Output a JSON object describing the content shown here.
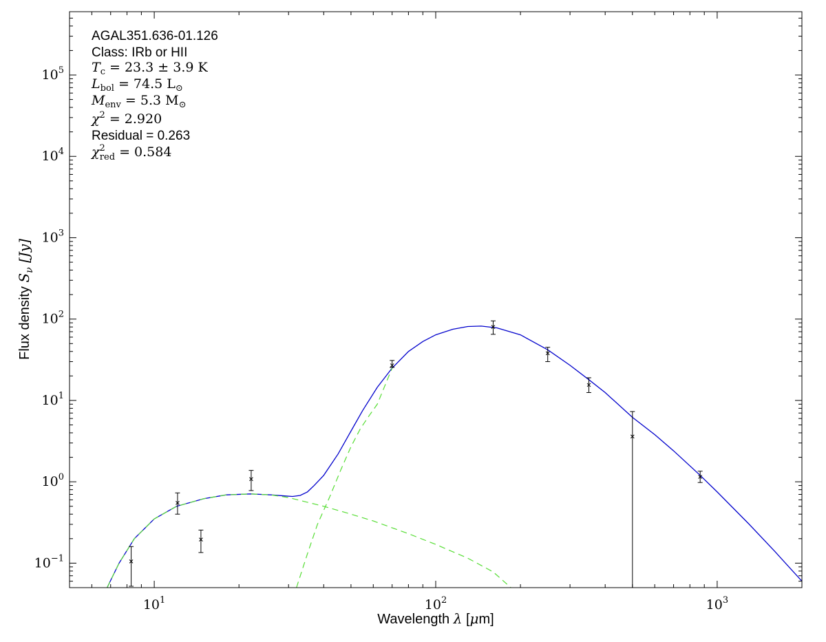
{
  "chart_data": {
    "type": "scatter",
    "xscale": "log",
    "yscale": "log",
    "xlim": [
      5,
      2000
    ],
    "ylim": [
      0.05,
      600000
    ],
    "xlabel": "Wavelength λ [μm]",
    "ylabel": "Flux density S_ν [Jy]",
    "xlabel_text": "Wavelength ",
    "xlabel_sym": "λ",
    "xlabel_unit_open": " [",
    "xlabel_unit_mu": "μ",
    "xlabel_unit_rest": "m]",
    "ylabel_text": "Flux density ",
    "ylabel_sym": "S",
    "ylabel_sub": "ν",
    "ylabel_unit": " [Jy]",
    "x_ticks": [
      {
        "value": 10,
        "base": "10",
        "exp": "1"
      },
      {
        "value": 100,
        "base": "10",
        "exp": "2"
      },
      {
        "value": 1000,
        "base": "10",
        "exp": "3"
      }
    ],
    "y_ticks": [
      {
        "value": 0.1,
        "base": "10",
        "exp": "−1"
      },
      {
        "value": 1,
        "base": "10",
        "exp": "0"
      },
      {
        "value": 10,
        "base": "10",
        "exp": "1"
      },
      {
        "value": 100,
        "base": "10",
        "exp": "2"
      },
      {
        "value": 1000,
        "base": "10",
        "exp": "3"
      },
      {
        "value": 10000,
        "base": "10",
        "exp": "4"
      },
      {
        "value": 100000,
        "base": "10",
        "exp": "5"
      }
    ],
    "annotations": {
      "source": "AGAL351.636-01.126",
      "class_line": "Class: IRb or HII",
      "tc_sym": "T",
      "tc_sub": "c",
      "tc_val": " = 23.3 ± 3.9 K",
      "lbol_sym": "L",
      "lbol_sub": "bol",
      "lbol_val": " = 74.5 L",
      "lbol_unit_sub": "⊙",
      "menv_sym": "M",
      "menv_sub": "env",
      "menv_val": " = 5.3 M",
      "menv_unit_sub": "⊙",
      "chi2_sym": "χ",
      "chi2_sup": "2",
      "chi2_val": " = 2.920",
      "residual": "Residual = 0.263",
      "chi2red_sym": "χ",
      "chi2red_sup": "2",
      "chi2red_sub": "red",
      "chi2red_val": " = 0.584"
    },
    "points": [
      {
        "x": 8.28,
        "y": 0.105,
        "ylo": 0.052,
        "yhi": 0.16
      },
      {
        "x": 12.1,
        "y": 0.55,
        "ylo": 0.4,
        "yhi": 0.73
      },
      {
        "x": 14.65,
        "y": 0.195,
        "ylo": 0.135,
        "yhi": 0.255
      },
      {
        "x": 22.1,
        "y": 1.08,
        "ylo": 0.78,
        "yhi": 1.38
      },
      {
        "x": 70,
        "y": 27.0,
        "ylo": 25.5,
        "yhi": 31.0
      },
      {
        "x": 160,
        "y": 80.0,
        "ylo": 65.0,
        "yhi": 95.0
      },
      {
        "x": 250,
        "y": 38.0,
        "ylo": 30.0,
        "yhi": 45.0
      },
      {
        "x": 350,
        "y": 15.5,
        "ylo": 12.5,
        "yhi": 19.0
      },
      {
        "x": 500,
        "y": 3.6,
        "ylo": 0.05,
        "yhi": 7.3
      },
      {
        "x": 870,
        "y": 1.15,
        "ylo": 0.98,
        "yhi": 1.35
      }
    ],
    "series": [
      {
        "style": "solid",
        "color": "#0000cc",
        "points": [
          [
            6.8,
            0.05
          ],
          [
            7.5,
            0.1
          ],
          [
            8.5,
            0.2
          ],
          [
            10,
            0.35
          ],
          [
            12,
            0.5
          ],
          [
            15,
            0.62
          ],
          [
            18,
            0.69
          ],
          [
            22,
            0.71
          ],
          [
            26,
            0.69
          ],
          [
            29,
            0.67
          ],
          [
            31,
            0.66
          ],
          [
            33,
            0.68
          ],
          [
            35,
            0.75
          ],
          [
            37,
            0.9
          ],
          [
            40,
            1.2
          ],
          [
            45,
            2.2
          ],
          [
            50,
            4.2
          ],
          [
            55,
            7.5
          ],
          [
            62,
            14.5
          ],
          [
            70,
            25
          ],
          [
            80,
            40
          ],
          [
            90,
            53
          ],
          [
            100,
            64
          ],
          [
            115,
            75
          ],
          [
            130,
            81
          ],
          [
            145,
            82
          ],
          [
            165,
            78
          ],
          [
            200,
            64
          ],
          [
            250,
            42
          ],
          [
            300,
            27
          ],
          [
            350,
            18
          ],
          [
            400,
            12.5
          ],
          [
            500,
            6.2
          ],
          [
            600,
            3.8
          ],
          [
            700,
            2.4
          ],
          [
            870,
            1.2
          ],
          [
            1000,
            0.75
          ],
          [
            1300,
            0.3
          ],
          [
            1600,
            0.14
          ],
          [
            2000,
            0.06
          ]
        ]
      },
      {
        "style": "dashed",
        "color": "#55dd33",
        "points": [
          [
            6.8,
            0.05
          ],
          [
            7.5,
            0.1
          ],
          [
            8.5,
            0.2
          ],
          [
            10,
            0.35
          ],
          [
            12,
            0.5
          ],
          [
            15,
            0.62
          ],
          [
            18,
            0.69
          ],
          [
            22,
            0.71
          ],
          [
            26,
            0.69
          ],
          [
            30,
            0.64
          ],
          [
            35,
            0.56
          ],
          [
            40,
            0.5
          ],
          [
            50,
            0.4
          ],
          [
            60,
            0.33
          ],
          [
            80,
            0.23
          ],
          [
            100,
            0.17
          ],
          [
            130,
            0.115
          ],
          [
            160,
            0.078
          ],
          [
            185,
            0.05
          ]
        ]
      },
      {
        "style": "dashed",
        "color": "#55dd33",
        "points": [
          [
            32,
            0.05
          ],
          [
            35,
            0.13
          ],
          [
            38,
            0.3
          ],
          [
            42,
            0.65
          ],
          [
            46,
            1.4
          ],
          [
            50,
            2.7
          ],
          [
            54,
            4.5
          ],
          [
            58,
            6.5
          ],
          [
            62,
            9
          ],
          [
            70,
            25
          ]
        ]
      }
    ]
  }
}
